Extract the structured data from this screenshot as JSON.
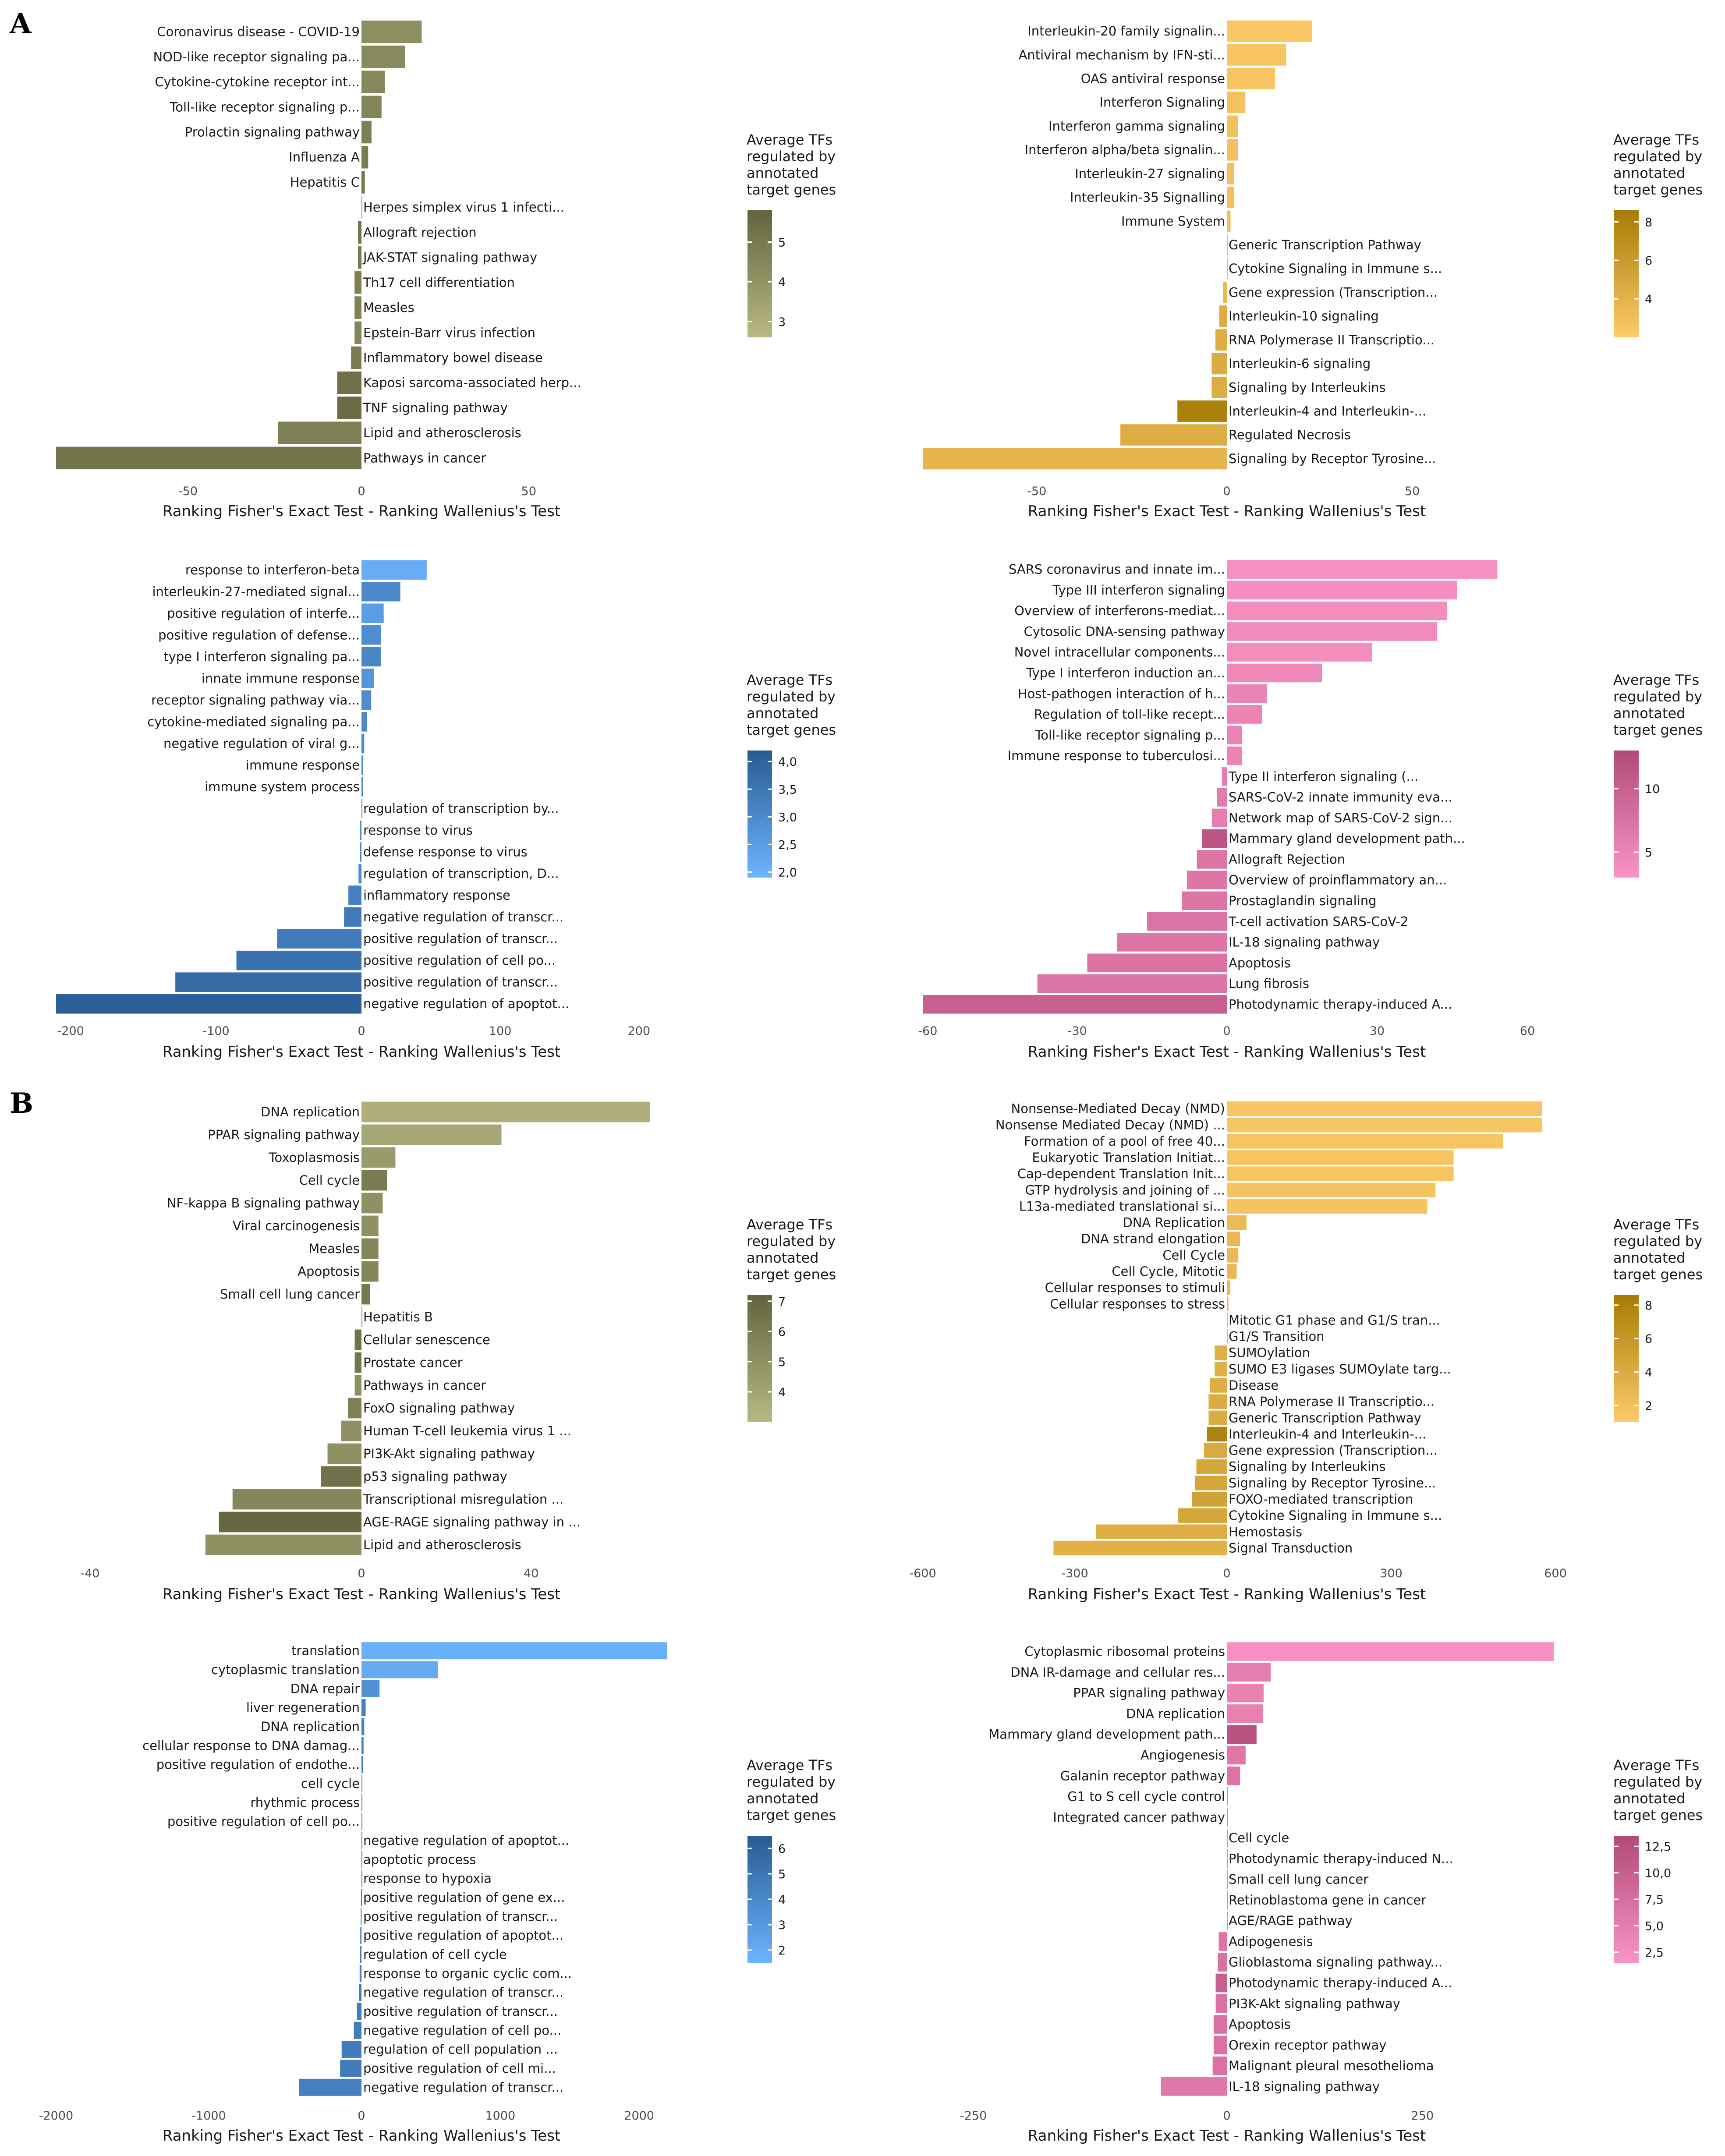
{
  "panel_letters": [
    "A",
    "B"
  ],
  "common": {
    "xlabel": "Ranking Fisher's Exact Test - Ranking Wallenius's Test",
    "legend_title": [
      "Average TFs",
      "regulated by",
      "annotated",
      "target genes"
    ]
  },
  "chart_data": [
    {
      "id": "A1",
      "type": "bar",
      "orientation": "horizontal",
      "xlabel": "Ranking Fisher's Exact Test - Ranking Wallenius's Test",
      "legend_title": "Average TFs regulated by annotated target genes",
      "palette": [
        "#b8b982",
        "#63643f"
      ],
      "xlim": [
        -88,
        52
      ],
      "xticks": [
        -50,
        0,
        50
      ],
      "xtick_labels": [
        "-50",
        "0",
        "50"
      ],
      "color_range": [
        2.6,
        5.8
      ],
      "color_ticks": [
        3,
        4,
        5
      ],
      "color_tick_labels": [
        "3",
        "4",
        "5"
      ],
      "categories": [
        "Coronavirus disease - COVID-19",
        "NOD-like receptor signaling pa...",
        "Cytokine-cytokine receptor int...",
        "Toll-like receptor signaling p...",
        "Prolactin signaling pathway",
        "Influenza A",
        "Hepatitis C",
        "Herpes simplex virus 1 infecti...",
        "Allograft rejection",
        "JAK-STAT signaling pathway",
        "Th17 cell differentiation",
        "Measles",
        "Epstein-Barr virus infection",
        "Inflammatory bowel disease",
        "Kaposi sarcoma-associated herp...",
        "TNF signaling pathway",
        "Lipid and atherosclerosis",
        "Pathways in cancer"
      ],
      "values": [
        18,
        13,
        7,
        6,
        3,
        2,
        1,
        0,
        -1,
        -1,
        -2,
        -2,
        -2,
        -3,
        -7,
        -7,
        -24,
        -88
      ],
      "colors": [
        4.2,
        4.4,
        4.5,
        4.6,
        4.8,
        4.9,
        5.0,
        4.0,
        5.2,
        5.0,
        4.8,
        4.7,
        4.6,
        4.9,
        5.3,
        5.5,
        4.8,
        5.2
      ]
    },
    {
      "id": "A2",
      "type": "bar",
      "orientation": "horizontal",
      "xlabel": "Ranking Fisher's Exact Test - Ranking Wallenius's Test",
      "legend_title": "Average TFs regulated by annotated target genes",
      "palette": [
        "#fecb69",
        "#a67c06"
      ],
      "xlim": [
        -80,
        52
      ],
      "xticks": [
        -50,
        0,
        50
      ],
      "xtick_labels": [
        "-50",
        "0",
        "50"
      ],
      "color_range": [
        2.0,
        8.6
      ],
      "color_ticks": [
        4,
        6,
        8
      ],
      "color_tick_labels": [
        "4",
        "6",
        "8"
      ],
      "categories": [
        "Interleukin-20 family signalin...",
        "Antiviral mechanism by IFN-sti...",
        "OAS antiviral response",
        "Interferon Signaling",
        "Interferon gamma signaling",
        "Interferon alpha/beta signalin...",
        "Interleukin-27 signaling",
        "Interleukin-35 Signalling",
        "Immune System",
        "Generic Transcription Pathway",
        "Cytokine Signaling in Immune s...",
        "Gene expression (Transcription...",
        "Interleukin-10 signaling",
        "RNA Polymerase II Transcriptio...",
        "Interleukin-6 signaling",
        "Signaling by Interleukins",
        "Interleukin-4 and Interleukin-...",
        "Regulated Necrosis",
        "Signaling by Receptor Tyrosine..."
      ],
      "values": [
        23,
        16,
        13,
        5,
        3,
        3,
        2,
        2,
        1,
        0,
        0,
        -1,
        -2,
        -3,
        -4,
        -4,
        -13,
        -28,
        -80
      ],
      "colors": [
        2.4,
        2.5,
        2.6,
        2.8,
        2.8,
        2.8,
        2.9,
        2.9,
        3.0,
        3.5,
        3.5,
        3.6,
        4.5,
        4.4,
        4.6,
        4.5,
        8.2,
        4.5,
        3.8
      ]
    },
    {
      "id": "A3",
      "type": "bar",
      "orientation": "horizontal",
      "xlabel": "Ranking Fisher's Exact Test - Ranking Wallenius's Test",
      "legend_title": "Average TFs regulated by annotated target genes",
      "palette": [
        "#6cb4ff",
        "#295b92"
      ],
      "xlim": [
        -210,
        210
      ],
      "xticks": [
        -200,
        -100,
        0,
        100,
        200
      ],
      "xtick_labels": [
        "-200",
        "-100",
        "0",
        "100",
        "200"
      ],
      "color_range": [
        1.9,
        4.2
      ],
      "color_ticks": [
        2.0,
        2.5,
        3.0,
        3.5,
        4.0
      ],
      "color_tick_labels": [
        "2,0",
        "2,5",
        "3,0",
        "3,5",
        "4,0"
      ],
      "categories": [
        "response to interferon-beta",
        "interleukin-27-mediated signal...",
        "positive regulation of interfe...",
        "positive regulation of defense...",
        "type I interferon signaling pa...",
        "innate immune response",
        "receptor signaling pathway via...",
        "cytokine-mediated signaling pa...",
        "negative regulation of viral g...",
        "immune response",
        "immune system process",
        "regulation of transcription by...",
        "response to virus",
        "defense response to virus",
        "regulation of transcription, D...",
        "inflammatory response",
        "negative regulation of transcr...",
        "positive regulation of transcr...",
        "positive regulation of cell po...",
        "positive regulation of transcr...",
        "negative regulation of apoptot..."
      ],
      "values": [
        47,
        28,
        16,
        14,
        14,
        9,
        7,
        4,
        2,
        1,
        1,
        0,
        -1,
        -1,
        -2,
        -9,
        -12,
        -58,
        -86,
        -128,
        -210
      ],
      "colors": [
        2.1,
        3.0,
        2.5,
        2.9,
        3.1,
        2.7,
        2.9,
        3.0,
        3.0,
        3.0,
        3.0,
        3.0,
        3.0,
        3.0,
        3.0,
        3.2,
        3.4,
        3.4,
        3.6,
        3.8,
        4.1
      ]
    },
    {
      "id": "A4",
      "type": "bar",
      "orientation": "horizontal",
      "xlabel": "Ranking Fisher's Exact Test - Ranking Wallenius's Test",
      "legend_title": "Average TFs regulated by annotated target genes",
      "palette": [
        "#fa94c6",
        "#b24a78"
      ],
      "xlim": [
        -61,
        60
      ],
      "xticks": [
        -60,
        -30,
        0,
        30,
        60
      ],
      "xtick_labels": [
        "-60",
        "-30",
        "0",
        "30",
        "60"
      ],
      "color_range": [
        3.0,
        13.0
      ],
      "color_ticks": [
        5,
        10
      ],
      "color_tick_labels": [
        "5",
        "10"
      ],
      "categories": [
        "SARS coronavirus and innate im...",
        "Type III interferon signaling",
        "Overview of interferons-mediat...",
        "Cytosolic DNA-sensing pathway",
        "Novel intracellular components...",
        "Type I interferon induction an...",
        "Host-pathogen interaction of h...",
        "Regulation of toll-like recept...",
        "Toll-like receptor signaling p...",
        "Immune response to tuberculosi...",
        "Type II interferon signaling (...",
        "SARS-CoV-2 innate immunity eva...",
        "Network map of SARS-CoV-2 sign...",
        "Mammary gland development path...",
        "Allograft Rejection",
        "Overview of proinflammatory an...",
        "Prostaglandin signaling",
        "T-cell activation SARS-CoV-2",
        "IL-18 signaling pathway",
        "Apoptosis",
        "Lung fibrosis",
        "Photodynamic therapy-induced A..."
      ],
      "values": [
        54,
        46,
        44,
        42,
        29,
        19,
        8,
        7,
        3,
        3,
        -1,
        -2,
        -3,
        -5,
        -6,
        -8,
        -9,
        -16,
        -22,
        -28,
        -38,
        -61
      ],
      "colors": [
        3.6,
        3.7,
        4.0,
        4.2,
        4.0,
        4.5,
        5.2,
        5.0,
        5.3,
        5.0,
        6.0,
        6.2,
        6.0,
        11.5,
        7.0,
        7.0,
        7.2,
        7.3,
        7.0,
        7.4,
        7.2,
        10.0
      ]
    },
    {
      "id": "B1",
      "type": "bar",
      "orientation": "horizontal",
      "xlabel": "Ranking Fisher's Exact Test - Ranking Wallenius's Test",
      "legend_title": "Average TFs regulated by annotated target genes",
      "palette": [
        "#b8b982",
        "#63643f"
      ],
      "xlim": [
        -45,
        72
      ],
      "xticks": [
        -40,
        0,
        40
      ],
      "xtick_labels": [
        "-40",
        "0",
        "40"
      ],
      "color_range": [
        3.0,
        7.2
      ],
      "color_ticks": [
        4,
        5,
        6,
        7
      ],
      "color_tick_labels": [
        "4",
        "5",
        "6",
        "7"
      ],
      "categories": [
        "DNA replication",
        "PPAR signaling pathway",
        "Toxoplasmosis",
        "Cell cycle",
        "NF-kappa B signaling pathway",
        "Viral carcinogenesis",
        "Measles",
        "Apoptosis",
        "Small cell lung cancer",
        "Hepatitis B",
        "Cellular senescence",
        "Prostate cancer",
        "Pathways in cancer",
        "FoxO signaling pathway",
        "Human T-cell leukemia virus 1 ...",
        "PI3K-Akt signaling pathway",
        "p53 signaling pathway",
        "Transcriptional misregulation ...",
        "AGE-RAGE signaling pathway in ...",
        "Lipid and atherosclerosis"
      ],
      "values": [
        68,
        33,
        8,
        6,
        5,
        4,
        4,
        4,
        2,
        0,
        -1,
        -1,
        -1,
        -2,
        -3,
        -5,
        -6,
        -19,
        -21,
        -23
      ],
      "colors": [
        3.5,
        3.9,
        4.5,
        6.0,
        5.0,
        5.0,
        5.5,
        5.5,
        6.2,
        5.0,
        6.5,
        6.3,
        5.0,
        5.8,
        5.0,
        5.0,
        6.5,
        5.5,
        7.0,
        5.0
      ]
    },
    {
      "id": "B2",
      "type": "bar",
      "orientation": "horizontal",
      "xlabel": "Ranking Fisher's Exact Test - Ranking Wallenius's Test",
      "legend_title": "Average TFs regulated by annotated target genes",
      "palette": [
        "#fecb69",
        "#a67c06"
      ],
      "xlim": [
        -600,
        600
      ],
      "xticks": [
        -600,
        -300,
        0,
        300,
        600
      ],
      "xtick_labels": [
        "-600",
        "-300",
        "0",
        "300",
        "600"
      ],
      "color_range": [
        1.0,
        8.6
      ],
      "color_ticks": [
        2,
        4,
        6,
        8
      ],
      "color_tick_labels": [
        "2",
        "4",
        "6",
        "8"
      ],
      "categories": [
        "Nonsense-Mediated Decay (NMD)",
        "Nonsense Mediated Decay (NMD) ...",
        "Formation of a pool of free 40...",
        "Eukaryotic Translation Initiat...",
        "Cap-dependent Translation Init...",
        "GTP hydrolysis and joining of ...",
        "L13a-mediated translational si...",
        "DNA Replication",
        "DNA strand elongation",
        "Cell Cycle",
        "Cell Cycle, Mitotic",
        "Cellular responses to stimuli",
        "Cellular responses to stress",
        "Mitotic G1 phase and G1/S tran...",
        "G1/S Transition",
        "SUMOylation",
        "SUMO E3 ligases SUMOylate targ...",
        "Disease",
        "RNA Polymerase II Transcriptio...",
        "Generic Transcription Pathway",
        "Interleukin-4 and Interleukin-...",
        "Gene expression (Transcription...",
        "Signaling by Interleukins",
        "Signaling by Receptor Tyrosine...",
        "FOXO-mediated transcription",
        "Cytokine Signaling in Immune s...",
        "Hemostasis",
        "Signal Transduction"
      ],
      "values": [
        576,
        576,
        504,
        414,
        414,
        381,
        366,
        36,
        24,
        21,
        18,
        6,
        3,
        0,
        0,
        -24,
        -24,
        -33,
        -36,
        -36,
        -39,
        -45,
        -60,
        -63,
        -69,
        -96,
        -258,
        -342
      ],
      "colors": [
        1.6,
        1.6,
        1.7,
        1.7,
        1.7,
        1.8,
        1.8,
        2.5,
        2.8,
        2.6,
        2.7,
        2.8,
        2.8,
        3.0,
        3.0,
        3.6,
        3.6,
        3.8,
        4.0,
        4.0,
        8.0,
        4.2,
        4.5,
        4.5,
        5.0,
        4.5,
        3.8,
        3.5
      ]
    },
    {
      "id": "B3",
      "type": "bar",
      "orientation": "horizontal",
      "xlabel": "Ranking Fisher's Exact Test - Ranking Wallenius's Test",
      "legend_title": "Average TFs regulated by annotated target genes",
      "palette": [
        "#6cb4ff",
        "#295b92"
      ],
      "xlim": [
        -2000,
        2200
      ],
      "xticks": [
        -2000,
        -1000,
        0,
        1000,
        2000
      ],
      "xtick_labels": [
        "-2000",
        "-1000",
        "0",
        "1000",
        "2000"
      ],
      "color_range": [
        1.5,
        6.5
      ],
      "color_ticks": [
        2,
        3,
        4,
        5,
        6
      ],
      "color_tick_labels": [
        "2",
        "3",
        "4",
        "5",
        "6"
      ],
      "categories": [
        "translation",
        "cytoplasmic translation",
        "DNA repair",
        "liver regeneration",
        "DNA replication",
        "cellular response to DNA damag...",
        "positive regulation of endothe...",
        "cell cycle",
        "rhythmic process",
        "positive regulation of cell po...",
        "negative regulation of apoptot...",
        "apoptotic process",
        "response to hypoxia",
        "positive regulation of gene ex...",
        "positive regulation of transcr...",
        "positive regulation of apoptot...",
        "regulation of cell cycle",
        "response to organic cyclic com...",
        "negative regulation of transcr...",
        "positive regulation of transcr...",
        "negative regulation of cell po...",
        "regulation of cell population ...",
        "positive regulation of cell mi...",
        "negative regulation of transcr..."
      ],
      "values": [
        2200,
        550,
        130,
        30,
        20,
        15,
        10,
        5,
        3,
        1,
        0,
        0,
        0,
        -3,
        -5,
        -8,
        -10,
        -12,
        -15,
        -30,
        -50,
        -130,
        -140,
        -410
      ],
      "colors": [
        1.7,
        2.0,
        3.5,
        4.5,
        4.2,
        4.4,
        4.6,
        4.5,
        4.5,
        4.5,
        4.5,
        4.5,
        4.5,
        4.5,
        4.6,
        4.6,
        4.6,
        4.6,
        4.6,
        4.6,
        4.6,
        4.6,
        4.6,
        4.5
      ]
    },
    {
      "id": "B4",
      "type": "bar",
      "orientation": "horizontal",
      "xlabel": "Ranking Fisher's Exact Test - Ranking Wallenius's Test",
      "legend_title": "Average TFs regulated by annotated target genes",
      "palette": [
        "#fa94c6",
        "#b24a78"
      ],
      "xlim": [
        -300,
        420
      ],
      "xticks": [
        -250,
        0,
        250
      ],
      "xtick_labels": [
        "-250",
        "0",
        "250"
      ],
      "color_range": [
        1.5,
        13.5
      ],
      "color_ticks": [
        2.5,
        5.0,
        7.5,
        10.0,
        12.5
      ],
      "color_tick_labels": [
        "2,5",
        "5,0",
        "7,5",
        "10,0",
        "12,5"
      ],
      "categories": [
        "Cytoplasmic ribosomal proteins",
        "DNA IR-damage and cellular res...",
        "PPAR signaling pathway",
        "DNA replication",
        "Mammary gland development path...",
        "Angiogenesis",
        "Galanin receptor pathway",
        "G1 to S cell cycle control",
        "Integrated cancer pathway",
        "Cell cycle",
        "Photodynamic therapy-induced N...",
        "Small cell lung cancer",
        "Retinoblastoma gene in cancer",
        "AGE/RAGE pathway",
        "Adipogenesis",
        "Glioblastoma signaling pathway...",
        "Photodynamic therapy-induced A...",
        "PI3K-Akt signaling pathway",
        "Apoptosis",
        "Orexin receptor pathway",
        "Malignant pleural mesothelioma",
        "IL-18 signaling pathway"
      ],
      "values": [
        418,
        56,
        47,
        46,
        38,
        24,
        17,
        1,
        1,
        0,
        0,
        0,
        0,
        0,
        -8,
        -9,
        -11,
        -11,
        -13,
        -13,
        -14,
        -65
      ],
      "colors": [
        2.0,
        5.0,
        4.5,
        4.6,
        12.0,
        6.0,
        6.5,
        5.0,
        5.0,
        5.0,
        5.0,
        5.0,
        5.0,
        5.0,
        6.5,
        7.0,
        10.0,
        7.0,
        7.0,
        7.0,
        7.0,
        6.0
      ]
    }
  ]
}
